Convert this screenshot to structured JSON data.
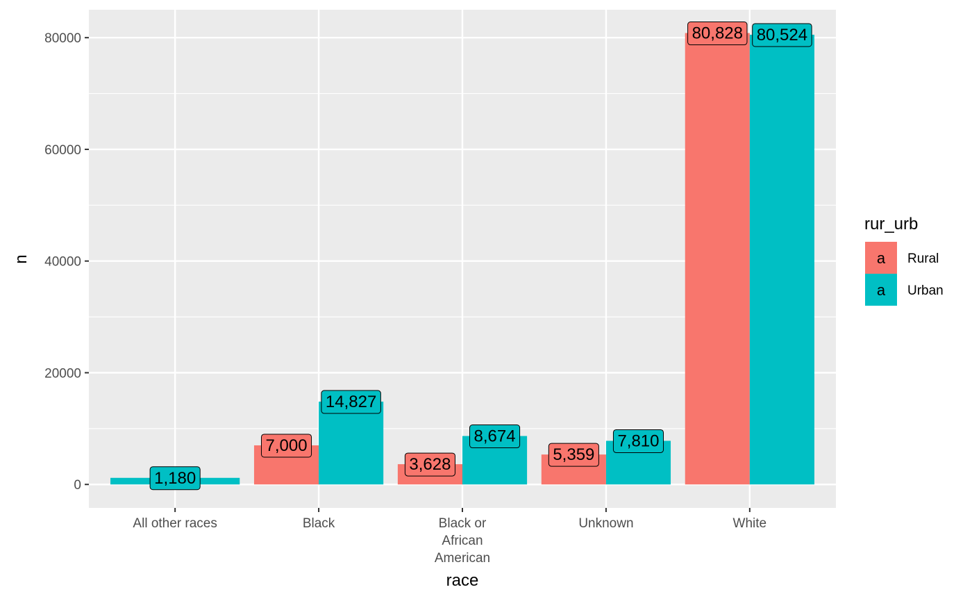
{
  "chart_data": {
    "type": "bar",
    "xlabel": "race",
    "ylabel": "n",
    "ylim": [
      -4200,
      85000
    ],
    "yticks": [
      0,
      20000,
      40000,
      60000,
      80000
    ],
    "y_tick_labels": [
      "0",
      "20000",
      "40000",
      "60000",
      "80000"
    ],
    "grid": true,
    "legend_position": "right",
    "legend_title": "rur_urb",
    "legend_key_glyph": "a",
    "categories": [
      "All other races",
      "Black",
      "Black or African American",
      "Unknown",
      "White"
    ],
    "category_lines": [
      [
        "All other races"
      ],
      [
        "Black"
      ],
      [
        "Black or",
        "African",
        "American"
      ],
      [
        "Unknown"
      ],
      [
        "White"
      ]
    ],
    "series": [
      {
        "name": "Rural",
        "color": "#F8766D",
        "values": [
          null,
          7000,
          3628,
          5359,
          80828
        ],
        "labels": [
          null,
          "7,000",
          "3,628",
          "5,359",
          "80,828"
        ]
      },
      {
        "name": "Urban",
        "color": "#00BFC4",
        "values": [
          1180,
          14827,
          8674,
          7810,
          80524
        ],
        "labels": [
          "1,180",
          "14,827",
          "8,674",
          "7,810",
          "80,524"
        ]
      }
    ]
  }
}
